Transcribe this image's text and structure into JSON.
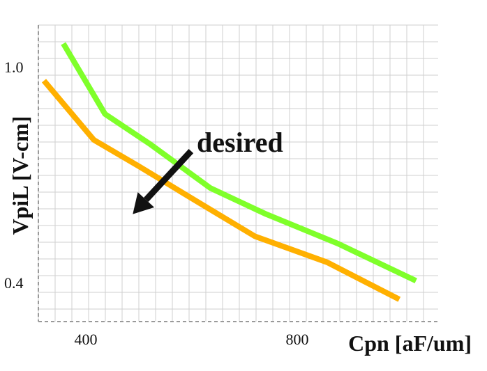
{
  "chart_data": {
    "type": "line",
    "xlabel": "Cpn [aF/um]",
    "ylabel": "VpiL [V-cm]",
    "xlim": [
      280,
      1000
    ],
    "ylim": [
      0.32,
      1.12
    ],
    "x_ticks": [
      400,
      800
    ],
    "y_ticks": [
      0.4,
      1.0
    ],
    "grid": true,
    "legend": "none",
    "series": [
      {
        "color": "#7FFF2A",
        "points": [
          [
            325,
            1.07
          ],
          [
            400,
            0.88
          ],
          [
            480,
            0.8
          ],
          [
            590,
            0.68
          ],
          [
            690,
            0.61
          ],
          [
            820,
            0.53
          ],
          [
            960,
            0.43
          ]
        ]
      },
      {
        "color": "#FFB000",
        "points": [
          [
            290,
            0.97
          ],
          [
            380,
            0.81
          ],
          [
            460,
            0.74
          ],
          [
            570,
            0.64
          ],
          [
            670,
            0.55
          ],
          [
            800,
            0.48
          ],
          [
            930,
            0.38
          ]
        ]
      }
    ],
    "annotations": [
      {
        "text": "desired",
        "arrow_from": [
          555,
          0.78
        ],
        "arrow_to": [
          450,
          0.61
        ]
      }
    ]
  },
  "colors": {
    "grid": "#cfcfcf",
    "axis": "#9a9a9a",
    "arrow": "#111111"
  }
}
